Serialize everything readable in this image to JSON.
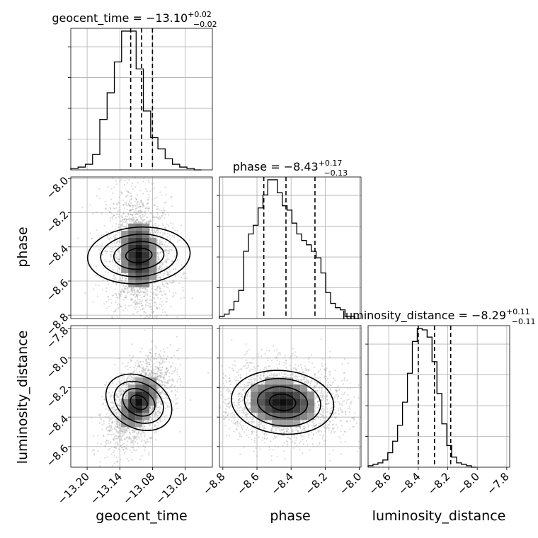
{
  "chart_data": {
    "type": "corner",
    "parameters": [
      "geocent_time",
      "phase",
      "luminosity_distance"
    ],
    "titles": [
      {
        "name": "geocent_time",
        "value": "−13.10",
        "plus": "+0.02",
        "minus": "−0.02"
      },
      {
        "name": "phase",
        "value": "−8.43",
        "plus": "+0.17",
        "minus": "−0.13"
      },
      {
        "name": "luminosity_distance",
        "value": "−8.29",
        "plus": "+0.11",
        "minus": "−0.11"
      }
    ],
    "ranges": {
      "geocent_time": [
        -13.23,
        -12.97
      ],
      "phase": [
        -8.82,
        -7.99
      ],
      "luminosity_distance": [
        -8.74,
        -7.78
      ]
    },
    "ticks": {
      "geocent_time": [
        -13.2,
        -13.14,
        -13.08,
        -13.02
      ],
      "phase_x": [
        -8.8,
        -8.6,
        -8.4,
        -8.2,
        -8.0
      ],
      "phase_y": [
        -8.0,
        -8.2,
        -8.4,
        -8.6,
        -8.8
      ],
      "luminosity_distance_x": [
        -8.6,
        -8.4,
        -8.2,
        -8.0,
        -7.8
      ],
      "luminosity_distance_y": [
        -7.8,
        -8.0,
        -8.2,
        -8.4,
        -8.6
      ]
    },
    "tick_labels": {
      "geocent_time": [
        "−13.20",
        "−13.14",
        "−13.08",
        "−13.02"
      ],
      "phase_x": [
        "−8.8",
        "−8.6",
        "−8.4",
        "−8.2",
        "−8.0"
      ],
      "phase_y": [
        "−8.0",
        "−8.2",
        "−8.4",
        "−8.6",
        "−8.8"
      ],
      "luminosity_distance_x": [
        "−8.6",
        "−8.4",
        "−8.2",
        "−8.0",
        "−7.8"
      ],
      "luminosity_distance_y": [
        "−7.8",
        "−8.0",
        "−8.2",
        "−8.4",
        "−8.6"
      ]
    },
    "histograms": {
      "geocent_time": {
        "edges": [
          -13.23,
          -13.2167,
          -13.2033,
          -13.19,
          -13.1767,
          -13.1633,
          -13.15,
          -13.1367,
          -13.1233,
          -13.11,
          -13.0967,
          -13.0833,
          -13.07,
          -13.0567,
          -13.0433,
          -13.03,
          -13.0167,
          -13.0033,
          -12.99
        ],
        "counts": [
          1,
          2,
          4,
          11,
          36,
          55,
          77,
          99,
          99,
          72,
          42,
          23,
          15,
          8,
          4,
          2,
          1,
          0
        ]
      },
      "phase": {
        "edges": [
          -8.82,
          -8.7917,
          -8.7633,
          -8.735,
          -8.7067,
          -8.6783,
          -8.65,
          -8.6217,
          -8.5933,
          -8.565,
          -8.5367,
          -8.5083,
          -8.48,
          -8.4517,
          -8.4233,
          -8.395,
          -8.3667,
          -8.3383,
          -8.31,
          -8.2817,
          -8.2533,
          -8.225,
          -8.1967,
          -8.1683,
          -8.14,
          -8.1117,
          -8.0833,
          -8.055,
          -8.0267,
          -7.9983
        ],
        "counts": [
          1,
          2,
          4,
          8,
          13,
          31,
          39,
          43,
          51,
          57,
          64,
          64,
          58,
          52,
          50,
          44,
          39,
          36,
          34,
          31,
          28,
          21,
          12,
          7,
          5,
          4,
          1,
          1,
          0
        ]
      },
      "luminosity_distance": {
        "edges": [
          -8.74,
          -8.7067,
          -8.6733,
          -8.64,
          -8.6067,
          -8.5733,
          -8.54,
          -8.5067,
          -8.4733,
          -8.44,
          -8.4067,
          -8.3733,
          -8.34,
          -8.3067,
          -8.2733,
          -8.24,
          -8.2067,
          -8.1733,
          -8.14,
          -8.1067,
          -8.0733,
          -8.04,
          -8.0067
        ],
        "counts": [
          1,
          2,
          3,
          5,
          10,
          18,
          29,
          45,
          65,
          87,
          96,
          95,
          90,
          73,
          51,
          30,
          15,
          7,
          3,
          2,
          1,
          0
        ]
      }
    },
    "quantiles": {
      "geocent_time": [
        -13.12,
        -13.1,
        -13.08
      ],
      "phase": [
        -8.56,
        -8.43,
        -8.26
      ],
      "luminosity_distance": [
        -8.4,
        -8.29,
        -8.18
      ]
    },
    "density_2d": [
      {
        "x": "geocent_time",
        "y": "phase",
        "center": [
          -13.105,
          -8.45
        ],
        "sd": [
          0.022,
          0.14
        ],
        "rho": -0.1
      },
      {
        "x": "geocent_time",
        "y": "luminosity_distance",
        "center": [
          -13.105,
          -8.3
        ],
        "sd": [
          0.022,
          0.11
        ],
        "rho": 0.5
      },
      {
        "x": "phase",
        "y": "luminosity_distance",
        "center": [
          -8.45,
          -8.3
        ],
        "sd": [
          0.14,
          0.1
        ],
        "rho": -0.1
      }
    ],
    "grid": true
  }
}
